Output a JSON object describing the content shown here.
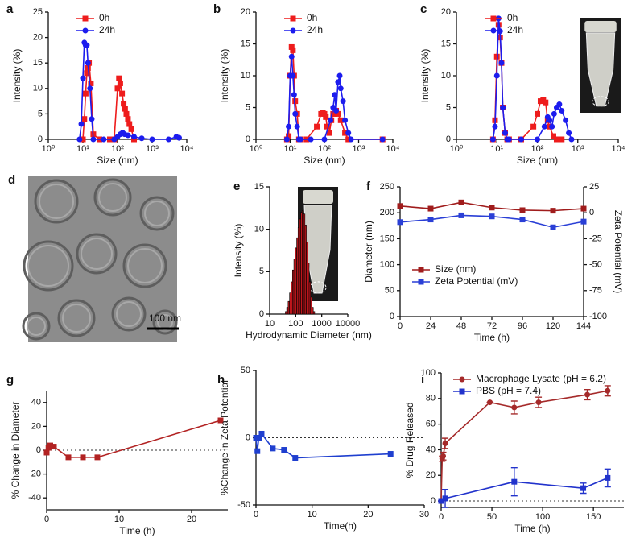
{
  "chart_data": [
    {
      "panel": "a",
      "type": "line",
      "xlabel": "Size (nm)",
      "ylabel": "Intensity (%)",
      "xscale": "log",
      "xlim": [
        1,
        10000
      ],
      "xticks": [
        {
          "value": 1,
          "label": "10⁰"
        },
        {
          "value": 10,
          "label": "10¹"
        },
        {
          "value": 100,
          "label": "10²"
        },
        {
          "value": 1000,
          "label": "10³"
        },
        {
          "value": 10000,
          "label": "10⁴"
        }
      ],
      "ylim": [
        0,
        25
      ],
      "yticks": [
        0,
        5,
        10,
        15,
        20,
        25
      ],
      "legend": "upper left",
      "series": [
        {
          "name": "0h",
          "color": "#ee1c1c",
          "marker": "square",
          "x": [
            10,
            11,
            12,
            13,
            14,
            15,
            17,
            20,
            30,
            60,
            80,
            100,
            110,
            120,
            135,
            150,
            165,
            180,
            200,
            220,
            250,
            300
          ],
          "values": [
            0,
            4,
            9,
            13,
            14,
            15,
            11,
            1,
            0,
            0,
            0,
            10,
            12,
            11,
            9,
            7,
            6,
            5,
            4,
            3,
            2,
            0
          ]
        },
        {
          "name": "24h",
          "color": "#1c1cee",
          "marker": "circle",
          "x": [
            8,
            9,
            10,
            11,
            12,
            13,
            14,
            16,
            18,
            20,
            40,
            80,
            100,
            120,
            140,
            160,
            200,
            300,
            500,
            1000,
            3000,
            5000,
            6000
          ],
          "values": [
            0,
            3,
            12,
            19,
            18.5,
            18.5,
            15,
            10,
            4,
            0,
            0,
            0,
            0.5,
            1,
            1.3,
            1,
            0.8,
            0.5,
            0.2,
            0,
            0,
            0.5,
            0.3
          ]
        }
      ]
    },
    {
      "panel": "b",
      "type": "line",
      "xlabel": "Size (nm)",
      "ylabel": "Intensity (%)",
      "xscale": "log",
      "xlim": [
        1,
        10000
      ],
      "xticks": [
        {
          "value": 1,
          "label": "10⁰"
        },
        {
          "value": 10,
          "label": "10¹"
        },
        {
          "value": 100,
          "label": "10²"
        },
        {
          "value": 1000,
          "label": "10³"
        },
        {
          "value": 10000,
          "label": "10⁴"
        }
      ],
      "ylim": [
        0,
        20
      ],
      "yticks": [
        0,
        5,
        10,
        15,
        20
      ],
      "legend": "upper left",
      "series": [
        {
          "name": "0h",
          "color": "#ee1c1c",
          "marker": "square",
          "x": [
            8,
            9,
            10,
            11,
            12,
            13,
            14,
            16,
            18,
            20,
            30,
            60,
            80,
            90,
            100,
            110,
            120,
            140,
            160,
            180,
            200,
            220,
            250,
            300,
            400,
            500,
            5000
          ],
          "values": [
            0,
            0.5,
            10,
            14.5,
            14,
            10,
            6,
            4,
            0,
            0,
            0,
            2,
            4,
            4.2,
            4,
            3.5,
            2,
            1,
            3,
            4,
            4,
            4.5,
            4,
            3,
            1,
            0,
            0
          ]
        },
        {
          "name": "24h",
          "color": "#1c1cee",
          "marker": "circle",
          "x": [
            8,
            9,
            10,
            11,
            12,
            13,
            14,
            16,
            18,
            20,
            40,
            100,
            150,
            180,
            200,
            220,
            250,
            280,
            300,
            350,
            400,
            500,
            600,
            5000
          ],
          "values": [
            0,
            2,
            10,
            13,
            10,
            7,
            4,
            2,
            0,
            0,
            0,
            0,
            3,
            5,
            7,
            4.5,
            9,
            10,
            8,
            6,
            3,
            1,
            0,
            0
          ]
        }
      ]
    },
    {
      "panel": "c",
      "type": "line",
      "xlabel": "Size (nm)",
      "ylabel": "Intensity (%)",
      "xscale": "log",
      "xlim": [
        1,
        10000
      ],
      "xticks": [
        {
          "value": 1,
          "label": "10⁰"
        },
        {
          "value": 10,
          "label": "10¹"
        },
        {
          "value": 100,
          "label": "10²"
        },
        {
          "value": 1000,
          "label": "10³"
        },
        {
          "value": 10000,
          "label": "10⁴"
        }
      ],
      "ylim": [
        0,
        20
      ],
      "yticks": [
        0,
        5,
        10,
        15,
        20
      ],
      "legend": "upper left",
      "series": [
        {
          "name": "0h",
          "color": "#ee1c1c",
          "marker": "square",
          "x": [
            8,
            9,
            10,
            11,
            12,
            13,
            14,
            16,
            18,
            20,
            40,
            80,
            100,
            120,
            140,
            160,
            180,
            200,
            250,
            300,
            400
          ],
          "values": [
            0,
            3,
            13,
            18,
            16,
            12,
            5,
            1,
            0,
            0,
            0,
            2,
            4,
            6,
            6.2,
            5.8,
            3,
            2,
            0.5,
            0,
            0
          ]
        },
        {
          "name": "24h",
          "color": "#1c1cee",
          "marker": "circle",
          "x": [
            8,
            9,
            10,
            11,
            12,
            13,
            14,
            16,
            18,
            20,
            40,
            100,
            150,
            180,
            200,
            230,
            260,
            300,
            350,
            400,
            500,
            600,
            700
          ],
          "values": [
            0,
            2,
            10,
            19,
            17,
            12,
            5,
            1,
            0,
            0,
            0,
            0,
            2,
            3.5,
            3,
            2,
            4,
            5,
            5.5,
            4.5,
            3,
            1,
            0
          ]
        }
      ]
    },
    {
      "panel": "e",
      "type": "histogram",
      "xlabel": "Hydrodynamic Diameter (nm)",
      "ylabel": "Intensity (%)",
      "xscale": "log",
      "xlim": [
        10,
        10000
      ],
      "xticks": [
        10,
        100,
        1000,
        10000
      ],
      "ylim": [
        0,
        15
      ],
      "yticks": [
        0,
        5,
        10,
        15
      ],
      "color": "#c0161c",
      "bins": [
        40,
        45,
        51,
        58,
        66,
        75,
        85,
        96,
        109,
        123,
        139,
        157,
        178,
        201,
        227,
        257,
        290,
        328,
        371,
        419,
        474,
        536
      ],
      "values": [
        0.3,
        0.8,
        1.5,
        2.5,
        3.8,
        5.2,
        6.5,
        7.8,
        9,
        10.2,
        11.2,
        12,
        12.2,
        11.8,
        10.5,
        8.5,
        6,
        3.8,
        2,
        0.8,
        0.3
      ]
    },
    {
      "panel": "f",
      "type": "line",
      "xlabel": "Time (h)",
      "ylabel": "Diameter (nm)",
      "y2label": "Zeta Potential (mV)",
      "xlim": [
        0,
        144
      ],
      "xticks": [
        0,
        24,
        48,
        72,
        96,
        120,
        144
      ],
      "ylim": [
        0,
        250
      ],
      "yticks": [
        0,
        50,
        100,
        150,
        200,
        250
      ],
      "y2lim": [
        -100,
        25
      ],
      "y2ticks": [
        -100,
        -75,
        -50,
        -25,
        0,
        25
      ],
      "legend": "lower left",
      "series": [
        {
          "name": "Size (nm)",
          "color": "#a01c1c",
          "marker": "square",
          "x": [
            0,
            24,
            48,
            72,
            96,
            120,
            144
          ],
          "values": [
            213,
            208,
            220,
            210,
            205,
            204,
            208
          ]
        },
        {
          "name": "Zeta Potential (mV)",
          "color": "#2a3fd6",
          "marker": "square",
          "axis": "y2",
          "x": [
            0,
            24,
            48,
            72,
            96,
            120,
            144
          ],
          "values": [
            -9,
            -6.5,
            -2.5,
            -3.5,
            -6.5,
            -14,
            -8.5
          ]
        }
      ]
    },
    {
      "panel": "g",
      "type": "line",
      "xlabel": "Time (h)",
      "ylabel": "% Change in Diameter",
      "xlim": [
        0,
        25
      ],
      "xticks": [
        0,
        10,
        20
      ],
      "ylim": [
        -50,
        50
      ],
      "yticks": [
        -40,
        -20,
        0,
        20,
        40
      ],
      "zero_line": true,
      "series": [
        {
          "color": "#b22222",
          "marker": "square",
          "x": [
            0,
            0.25,
            0.5,
            1,
            3,
            5,
            7,
            24
          ],
          "values": [
            -2,
            2,
            4,
            3,
            -6,
            -6,
            -6,
            25
          ]
        }
      ]
    },
    {
      "panel": "h",
      "type": "line",
      "xlabel": "Time(h)",
      "ylabel": "%Change in Zeta Potential",
      "xlim": [
        0,
        30
      ],
      "xticks": [
        0,
        10,
        20,
        30
      ],
      "ylim": [
        -50,
        50
      ],
      "yticks": [
        -50,
        0,
        50
      ],
      "zero_line": true,
      "series": [
        {
          "color": "#1f3fcf",
          "marker": "square",
          "x": [
            0,
            0.25,
            0.5,
            1,
            3,
            5,
            7,
            24
          ],
          "values": [
            0,
            -10,
            0,
            3,
            -8,
            -9,
            -15,
            -12
          ]
        }
      ]
    },
    {
      "panel": "i",
      "type": "line",
      "xlabel": "Time (h)",
      "ylabel": "% Drug Released",
      "xlim": [
        0,
        180
      ],
      "xticks": [
        0,
        50,
        100,
        150
      ],
      "ylim": [
        -5,
        100
      ],
      "yticks": [
        0,
        20,
        40,
        60,
        80,
        100
      ],
      "zero_line": true,
      "legend": "upper left",
      "series": [
        {
          "name": "Macrophage Lysate (pH = 6.2)",
          "color": "#a52a2a",
          "marker": "circle",
          "x": [
            0,
            1,
            2,
            4,
            48,
            72,
            96,
            144,
            164
          ],
          "values": [
            0,
            33,
            35,
            45,
            77,
            73,
            77,
            83,
            86
          ],
          "errors": [
            0,
            2,
            3,
            4,
            0,
            5,
            4,
            4,
            4
          ]
        },
        {
          "name": "PBS (pH = 7.4)",
          "color": "#2233cc",
          "marker": "square",
          "x": [
            0,
            4,
            72,
            140,
            164
          ],
          "values": [
            0,
            2,
            15,
            10,
            18
          ],
          "errors": [
            0,
            7,
            11,
            4,
            7
          ]
        }
      ]
    }
  ],
  "image_panel": {
    "panel": "d",
    "scale_bar": "100 nm"
  }
}
